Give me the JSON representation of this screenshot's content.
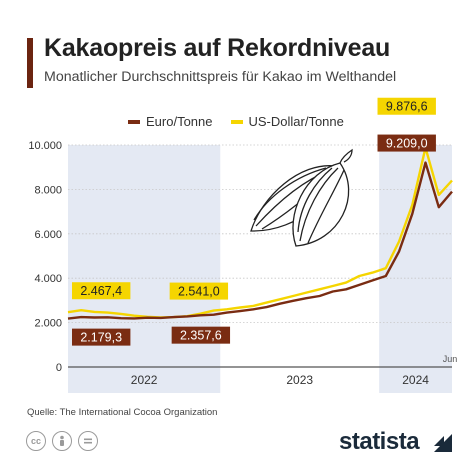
{
  "header": {
    "title": "Kakaopreis auf Rekordniveau",
    "subtitle": "Monatlicher Durchschnittspreis für Kakao im Welthandel"
  },
  "footer": {
    "source": "Quelle: The International Cocoa Organization",
    "brand": "statista",
    "license_icons": [
      "cc-icon",
      "person-icon",
      "equals-icon"
    ]
  },
  "colors": {
    "eur": "#7a2c12",
    "usd": "#f5d500",
    "shade": "#e4e9f3",
    "grid": "#c8c8c8"
  },
  "chart_data": {
    "type": "line",
    "x_unit": "month",
    "x": [
      "2022-01",
      "2022-02",
      "2022-03",
      "2022-04",
      "2022-05",
      "2022-06",
      "2022-07",
      "2022-08",
      "2022-09",
      "2022-10",
      "2022-11",
      "2022-12",
      "2023-01",
      "2023-02",
      "2023-03",
      "2023-04",
      "2023-05",
      "2023-06",
      "2023-07",
      "2023-08",
      "2023-09",
      "2023-10",
      "2023-11",
      "2023-12",
      "2024-01",
      "2024-02",
      "2024-03",
      "2024-04",
      "2024-05",
      "2024-06"
    ],
    "series": [
      {
        "name": "Euro/Tonne",
        "color": "#7a2c12",
        "values": [
          2179.3,
          2250,
          2230,
          2240,
          2200,
          2190,
          2220,
          2210,
          2250,
          2280,
          2330,
          2357.6,
          2450,
          2520,
          2600,
          2700,
          2850,
          2980,
          3100,
          3200,
          3400,
          3500,
          3700,
          3900,
          4100,
          5200,
          6900,
          9209.0,
          7200,
          7900
        ]
      },
      {
        "name": "US-Dollar/Tonne",
        "color": "#f5d500",
        "values": [
          2467.4,
          2560,
          2480,
          2450,
          2390,
          2310,
          2260,
          2230,
          2250,
          2290,
          2400,
          2541.0,
          2600,
          2680,
          2750,
          2900,
          3050,
          3200,
          3350,
          3500,
          3650,
          3800,
          4100,
          4250,
          4450,
          5650,
          7300,
          9876.6,
          7750,
          8400
        ]
      }
    ],
    "yticks": [
      "0",
      "2.000",
      "4.000",
      "6.000",
      "8.000",
      "10.000"
    ],
    "ytick_values": [
      0,
      2000,
      4000,
      6000,
      8000,
      10000
    ],
    "ylim": [
      0,
      10000
    ],
    "xticks": [
      "2022",
      "2023",
      "2024"
    ],
    "extra_label": "Jun",
    "annotations": [
      {
        "series": 1,
        "index": 0,
        "text": "2.467,4"
      },
      {
        "series": 0,
        "index": 0,
        "text": "2.179,3"
      },
      {
        "series": 1,
        "index": 11,
        "text": "2.541,0"
      },
      {
        "series": 0,
        "index": 11,
        "text": "2.357,6"
      },
      {
        "series": 1,
        "index": 27,
        "text": "9.876,6"
      },
      {
        "series": 0,
        "index": 27,
        "text": "9.209,0"
      }
    ],
    "shaded_years": [
      "2022",
      "2024"
    ],
    "grid": true,
    "legend": "top"
  }
}
